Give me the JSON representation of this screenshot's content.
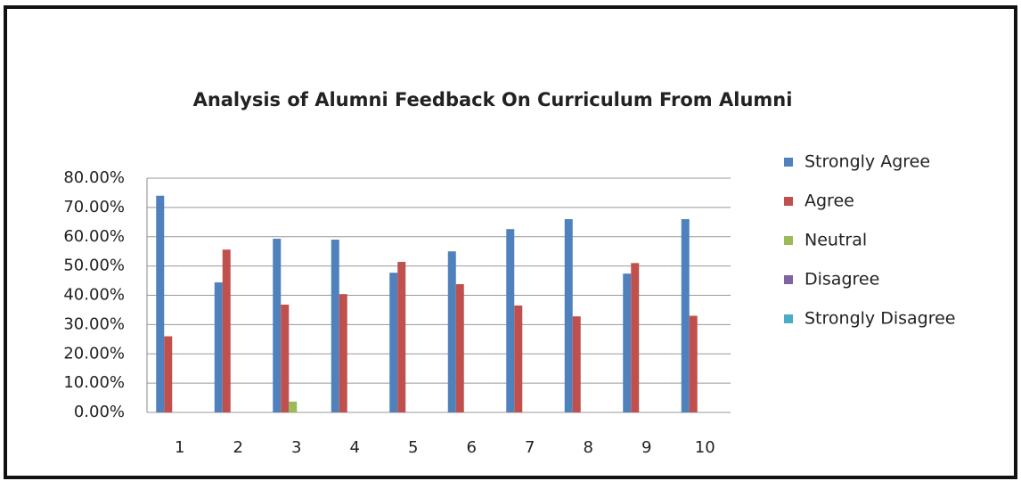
{
  "chart_data": {
    "type": "bar",
    "title": "Analysis of Alumni Feedback On Curriculum From Alumni",
    "categories": [
      "1",
      "2",
      "3",
      "4",
      "5",
      "6",
      "7",
      "8",
      "9",
      "10"
    ],
    "series": [
      {
        "name": "Strongly Agree",
        "color": "#4f81bd",
        "values": [
          74,
          44.4,
          59.3,
          59,
          47.7,
          55,
          62.6,
          66,
          47.4,
          66
        ]
      },
      {
        "name": "Agree",
        "color": "#c0504d",
        "values": [
          26,
          55.6,
          36.8,
          40.4,
          51.4,
          43.8,
          36.5,
          32.8,
          51,
          33
        ]
      },
      {
        "name": "Neutral",
        "color": "#9bbb59",
        "values": [
          0,
          0,
          3.7,
          0,
          0,
          0,
          0,
          0,
          0,
          0
        ]
      },
      {
        "name": "Disagree",
        "color": "#8064a2",
        "values": [
          0,
          0,
          0,
          0,
          0,
          0,
          0,
          0,
          0,
          0
        ]
      },
      {
        "name": "Strongly Disagree",
        "color": "#4bacc6",
        "values": [
          0,
          0,
          0,
          0,
          0,
          0,
          0,
          0,
          0,
          0
        ]
      }
    ],
    "ylim": [
      0,
      80
    ],
    "yticks": [
      {
        "value": 0,
        "label": "0.00%"
      },
      {
        "value": 10,
        "label": "10.00%"
      },
      {
        "value": 20,
        "label": "20.00%"
      },
      {
        "value": 30,
        "label": "30.00%"
      },
      {
        "value": 40,
        "label": "40.00%"
      },
      {
        "value": 50,
        "label": "50.00%"
      },
      {
        "value": 60,
        "label": "60.00%"
      },
      {
        "value": 70,
        "label": "70.00%"
      },
      {
        "value": 80,
        "label": "80.00%"
      }
    ],
    "grid": true,
    "legend": "right"
  }
}
